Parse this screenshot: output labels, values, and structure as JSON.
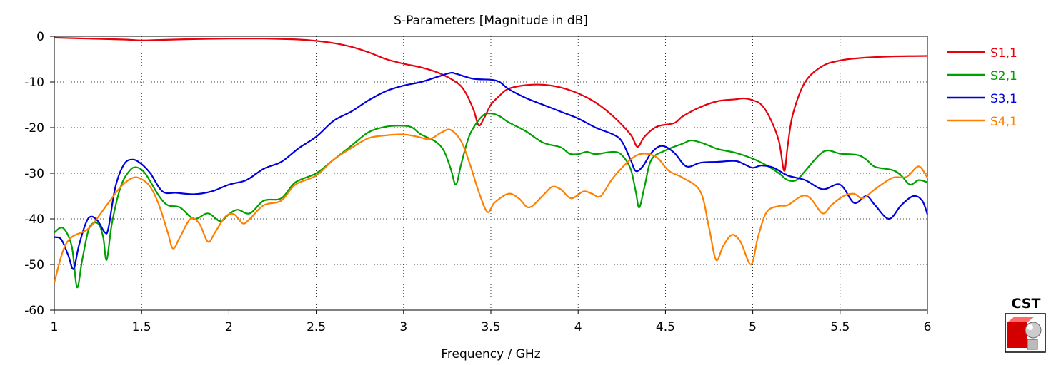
{
  "chart_data": {
    "type": "line",
    "title": "S-Parameters [Magnitude in dB]",
    "xlabel": "Frequency / GHz",
    "ylabel": "",
    "xlim": [
      1,
      6
    ],
    "ylim": [
      -60,
      0
    ],
    "xticks": [
      "1",
      "1.5",
      "2",
      "2.5",
      "3",
      "3.5",
      "4",
      "4.5",
      "5",
      "5.5",
      "6"
    ],
    "yticks": [
      "0",
      "-10",
      "-20",
      "-30",
      "-40",
      "-50",
      "-60"
    ],
    "grid": true,
    "legend_position": "right",
    "series": [
      {
        "name": "S1,1",
        "color": "#e8000b",
        "points": [
          [
            1.0,
            -0.3
          ],
          [
            1.2,
            -0.5
          ],
          [
            1.4,
            -0.7
          ],
          [
            1.5,
            -0.9
          ],
          [
            1.6,
            -0.8
          ],
          [
            1.8,
            -0.6
          ],
          [
            2.0,
            -0.5
          ],
          [
            2.2,
            -0.5
          ],
          [
            2.4,
            -0.7
          ],
          [
            2.5,
            -1.0
          ],
          [
            2.6,
            -1.5
          ],
          [
            2.7,
            -2.3
          ],
          [
            2.8,
            -3.5
          ],
          [
            2.9,
            -5.0
          ],
          [
            3.0,
            -6.0
          ],
          [
            3.1,
            -6.8
          ],
          [
            3.2,
            -8.0
          ],
          [
            3.3,
            -10.0
          ],
          [
            3.35,
            -12.0
          ],
          [
            3.4,
            -16.0
          ],
          [
            3.43,
            -19.5
          ],
          [
            3.46,
            -18.0
          ],
          [
            3.5,
            -15.0
          ],
          [
            3.55,
            -13.0
          ],
          [
            3.6,
            -11.5
          ],
          [
            3.7,
            -10.7
          ],
          [
            3.8,
            -10.6
          ],
          [
            3.9,
            -11.2
          ],
          [
            4.0,
            -12.5
          ],
          [
            4.1,
            -14.5
          ],
          [
            4.2,
            -17.5
          ],
          [
            4.3,
            -21.5
          ],
          [
            4.34,
            -24.2
          ],
          [
            4.38,
            -22.0
          ],
          [
            4.45,
            -19.8
          ],
          [
            4.55,
            -19.0
          ],
          [
            4.6,
            -17.5
          ],
          [
            4.7,
            -15.5
          ],
          [
            4.8,
            -14.2
          ],
          [
            4.9,
            -13.8
          ],
          [
            4.95,
            -13.6
          ],
          [
            5.0,
            -14.0
          ],
          [
            5.05,
            -15.0
          ],
          [
            5.1,
            -18.0
          ],
          [
            5.15,
            -23.0
          ],
          [
            5.18,
            -29.5
          ],
          [
            5.2,
            -24.0
          ],
          [
            5.23,
            -17.0
          ],
          [
            5.3,
            -10.0
          ],
          [
            5.4,
            -6.5
          ],
          [
            5.5,
            -5.3
          ],
          [
            5.6,
            -4.8
          ],
          [
            5.8,
            -4.4
          ],
          [
            6.0,
            -4.3
          ]
        ]
      },
      {
        "name": "S2,1",
        "color": "#00a000",
        "points": [
          [
            1.0,
            -43.0
          ],
          [
            1.05,
            -42.0
          ],
          [
            1.1,
            -46.0
          ],
          [
            1.13,
            -55.0
          ],
          [
            1.16,
            -49.0
          ],
          [
            1.2,
            -42.0
          ],
          [
            1.25,
            -41.0
          ],
          [
            1.28,
            -44.0
          ],
          [
            1.3,
            -49.0
          ],
          [
            1.33,
            -41.0
          ],
          [
            1.38,
            -33.0
          ],
          [
            1.43,
            -29.5
          ],
          [
            1.47,
            -28.7
          ],
          [
            1.52,
            -30.0
          ],
          [
            1.6,
            -35.0
          ],
          [
            1.65,
            -37.0
          ],
          [
            1.72,
            -37.5
          ],
          [
            1.8,
            -40.0
          ],
          [
            1.88,
            -38.8
          ],
          [
            1.95,
            -40.5
          ],
          [
            2.0,
            -39.0
          ],
          [
            2.05,
            -38.0
          ],
          [
            2.12,
            -38.8
          ],
          [
            2.2,
            -36.0
          ],
          [
            2.3,
            -35.5
          ],
          [
            2.38,
            -32.0
          ],
          [
            2.5,
            -30.0
          ],
          [
            2.6,
            -27.0
          ],
          [
            2.7,
            -24.0
          ],
          [
            2.8,
            -21.0
          ],
          [
            2.9,
            -19.8
          ],
          [
            3.0,
            -19.6
          ],
          [
            3.05,
            -20.0
          ],
          [
            3.1,
            -21.5
          ],
          [
            3.18,
            -23.0
          ],
          [
            3.23,
            -25.0
          ],
          [
            3.27,
            -29.0
          ],
          [
            3.3,
            -32.5
          ],
          [
            3.33,
            -28.0
          ],
          [
            3.38,
            -21.5
          ],
          [
            3.45,
            -17.5
          ],
          [
            3.5,
            -16.9
          ],
          [
            3.55,
            -17.5
          ],
          [
            3.6,
            -18.8
          ],
          [
            3.7,
            -20.8
          ],
          [
            3.8,
            -23.3
          ],
          [
            3.9,
            -24.3
          ],
          [
            3.95,
            -25.7
          ],
          [
            4.0,
            -25.8
          ],
          [
            4.05,
            -25.3
          ],
          [
            4.1,
            -25.8
          ],
          [
            4.2,
            -25.3
          ],
          [
            4.25,
            -26.0
          ],
          [
            4.3,
            -29.0
          ],
          [
            4.33,
            -34.0
          ],
          [
            4.35,
            -37.5
          ],
          [
            4.38,
            -33.0
          ],
          [
            4.42,
            -27.0
          ],
          [
            4.5,
            -25.0
          ],
          [
            4.6,
            -23.5
          ],
          [
            4.65,
            -22.8
          ],
          [
            4.72,
            -23.5
          ],
          [
            4.8,
            -24.7
          ],
          [
            4.9,
            -25.5
          ],
          [
            5.0,
            -26.8
          ],
          [
            5.08,
            -28.3
          ],
          [
            5.15,
            -30.0
          ],
          [
            5.2,
            -31.5
          ],
          [
            5.25,
            -31.5
          ],
          [
            5.3,
            -29.5
          ],
          [
            5.38,
            -26.0
          ],
          [
            5.43,
            -25.0
          ],
          [
            5.5,
            -25.7
          ],
          [
            5.6,
            -26.0
          ],
          [
            5.65,
            -27.0
          ],
          [
            5.7,
            -28.6
          ],
          [
            5.8,
            -29.3
          ],
          [
            5.85,
            -30.5
          ],
          [
            5.9,
            -32.5
          ],
          [
            5.95,
            -31.5
          ],
          [
            6.0,
            -32.0
          ]
        ]
      },
      {
        "name": "S3,1",
        "color": "#0000dd",
        "points": [
          [
            1.0,
            -44.0
          ],
          [
            1.04,
            -44.5
          ],
          [
            1.08,
            -48.0
          ],
          [
            1.11,
            -51.0
          ],
          [
            1.14,
            -46.0
          ],
          [
            1.18,
            -41.0
          ],
          [
            1.21,
            -39.5
          ],
          [
            1.25,
            -40.5
          ],
          [
            1.29,
            -43.0
          ],
          [
            1.31,
            -42.0
          ],
          [
            1.35,
            -33.0
          ],
          [
            1.4,
            -28.0
          ],
          [
            1.45,
            -27.0
          ],
          [
            1.5,
            -28.0
          ],
          [
            1.55,
            -30.0
          ],
          [
            1.62,
            -34.0
          ],
          [
            1.7,
            -34.3
          ],
          [
            1.8,
            -34.6
          ],
          [
            1.9,
            -34.0
          ],
          [
            2.0,
            -32.5
          ],
          [
            2.1,
            -31.5
          ],
          [
            2.2,
            -29.0
          ],
          [
            2.3,
            -27.5
          ],
          [
            2.4,
            -24.5
          ],
          [
            2.5,
            -22.0
          ],
          [
            2.6,
            -18.5
          ],
          [
            2.7,
            -16.5
          ],
          [
            2.8,
            -14.0
          ],
          [
            2.9,
            -12.0
          ],
          [
            3.0,
            -10.8
          ],
          [
            3.1,
            -10.0
          ],
          [
            3.2,
            -8.8
          ],
          [
            3.27,
            -8.0
          ],
          [
            3.3,
            -8.2
          ],
          [
            3.4,
            -9.3
          ],
          [
            3.5,
            -9.5
          ],
          [
            3.55,
            -10.0
          ],
          [
            3.6,
            -11.5
          ],
          [
            3.7,
            -13.5
          ],
          [
            3.8,
            -15.0
          ],
          [
            3.9,
            -16.5
          ],
          [
            4.0,
            -18.0
          ],
          [
            4.1,
            -20.0
          ],
          [
            4.2,
            -21.5
          ],
          [
            4.25,
            -23.0
          ],
          [
            4.3,
            -27.0
          ],
          [
            4.33,
            -29.5
          ],
          [
            4.37,
            -28.5
          ],
          [
            4.42,
            -25.5
          ],
          [
            4.48,
            -24.0
          ],
          [
            4.55,
            -25.5
          ],
          [
            4.62,
            -28.5
          ],
          [
            4.7,
            -27.7
          ],
          [
            4.8,
            -27.5
          ],
          [
            4.9,
            -27.3
          ],
          [
            4.95,
            -28.0
          ],
          [
            5.0,
            -28.8
          ],
          [
            5.05,
            -28.3
          ],
          [
            5.12,
            -28.8
          ],
          [
            5.2,
            -30.5
          ],
          [
            5.3,
            -31.5
          ],
          [
            5.4,
            -33.5
          ],
          [
            5.5,
            -32.5
          ],
          [
            5.58,
            -36.5
          ],
          [
            5.65,
            -35.0
          ],
          [
            5.7,
            -37.0
          ],
          [
            5.78,
            -40.0
          ],
          [
            5.85,
            -37.0
          ],
          [
            5.92,
            -35.0
          ],
          [
            5.97,
            -36.0
          ],
          [
            6.0,
            -39.0
          ]
        ]
      },
      {
        "name": "S4,1",
        "color": "#ff8000",
        "points": [
          [
            1.0,
            -54.0
          ],
          [
            1.05,
            -47.0
          ],
          [
            1.1,
            -44.0
          ],
          [
            1.2,
            -42.0
          ],
          [
            1.3,
            -37.0
          ],
          [
            1.38,
            -33.0
          ],
          [
            1.45,
            -31.0
          ],
          [
            1.5,
            -31.3
          ],
          [
            1.55,
            -33.0
          ],
          [
            1.6,
            -37.0
          ],
          [
            1.65,
            -43.0
          ],
          [
            1.68,
            -46.5
          ],
          [
            1.72,
            -44.0
          ],
          [
            1.78,
            -40.0
          ],
          [
            1.83,
            -41.0
          ],
          [
            1.88,
            -45.0
          ],
          [
            1.92,
            -43.0
          ],
          [
            1.98,
            -39.5
          ],
          [
            2.03,
            -39.0
          ],
          [
            2.08,
            -41.0
          ],
          [
            2.12,
            -40.0
          ],
          [
            2.2,
            -37.0
          ],
          [
            2.3,
            -36.0
          ],
          [
            2.38,
            -32.5
          ],
          [
            2.5,
            -30.5
          ],
          [
            2.6,
            -27.0
          ],
          [
            2.7,
            -24.5
          ],
          [
            2.8,
            -22.3
          ],
          [
            2.9,
            -21.7
          ],
          [
            3.0,
            -21.5
          ],
          [
            3.08,
            -22.0
          ],
          [
            3.15,
            -22.5
          ],
          [
            3.22,
            -21.0
          ],
          [
            3.27,
            -20.5
          ],
          [
            3.33,
            -23.0
          ],
          [
            3.38,
            -28.0
          ],
          [
            3.43,
            -34.0
          ],
          [
            3.48,
            -38.5
          ],
          [
            3.52,
            -36.5
          ],
          [
            3.6,
            -34.5
          ],
          [
            3.66,
            -35.5
          ],
          [
            3.72,
            -37.5
          ],
          [
            3.8,
            -34.8
          ],
          [
            3.85,
            -33.0
          ],
          [
            3.9,
            -33.5
          ],
          [
            3.96,
            -35.5
          ],
          [
            4.03,
            -34.0
          ],
          [
            4.08,
            -34.5
          ],
          [
            4.13,
            -35.0
          ],
          [
            4.2,
            -31.0
          ],
          [
            4.3,
            -27.0
          ],
          [
            4.37,
            -25.7
          ],
          [
            4.45,
            -26.5
          ],
          [
            4.52,
            -29.5
          ],
          [
            4.6,
            -31.0
          ],
          [
            4.7,
            -34.0
          ],
          [
            4.75,
            -42.0
          ],
          [
            4.79,
            -49.0
          ],
          [
            4.83,
            -46.0
          ],
          [
            4.88,
            -43.5
          ],
          [
            4.93,
            -45.0
          ],
          [
            4.99,
            -50.0
          ],
          [
            5.03,
            -44.0
          ],
          [
            5.08,
            -38.5
          ],
          [
            5.15,
            -37.2
          ],
          [
            5.2,
            -37.0
          ],
          [
            5.28,
            -35.0
          ],
          [
            5.33,
            -35.5
          ],
          [
            5.4,
            -38.8
          ],
          [
            5.45,
            -37.0
          ],
          [
            5.52,
            -35.0
          ],
          [
            5.58,
            -34.5
          ],
          [
            5.63,
            -35.5
          ],
          [
            5.7,
            -33.5
          ],
          [
            5.8,
            -31.0
          ],
          [
            5.88,
            -30.8
          ],
          [
            5.95,
            -28.5
          ],
          [
            6.0,
            -31.0
          ]
        ]
      }
    ]
  },
  "logo": {
    "text": "CST"
  }
}
